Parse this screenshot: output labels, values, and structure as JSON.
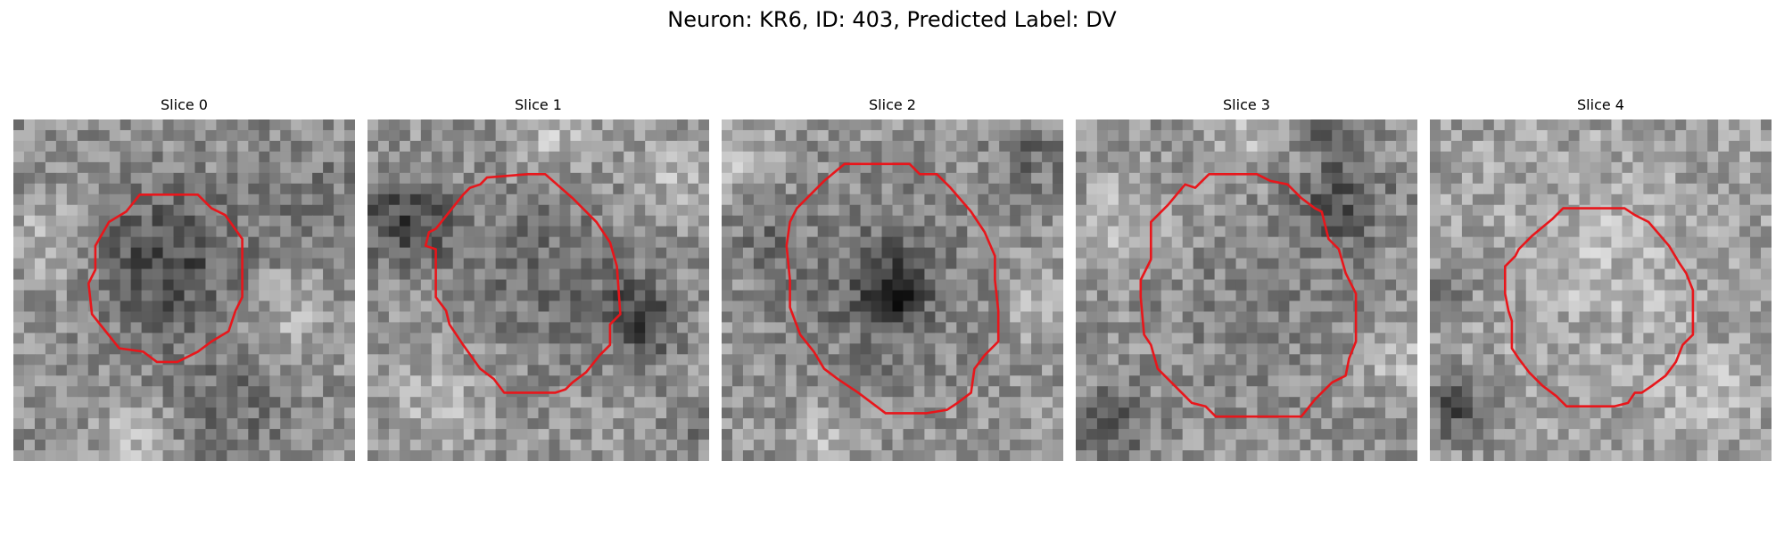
{
  "figure": {
    "title": "Neuron: KR6, ID: 403, Predicted Label: DV"
  },
  "panels": [
    {
      "title": "Slice 0",
      "seed": 11,
      "base": 145,
      "dark": [
        [
          0.45,
          0.42,
          0.22,
          70
        ],
        [
          0.88,
          0.25,
          0.18,
          25
        ],
        [
          0.65,
          0.85,
          0.18,
          35
        ]
      ],
      "bright": [
        [
          0.12,
          0.35,
          0.12,
          45
        ],
        [
          0.8,
          0.55,
          0.12,
          40
        ],
        [
          0.35,
          0.92,
          0.1,
          50
        ]
      ],
      "contour": [
        [
          0.37,
          0.22
        ],
        [
          0.54,
          0.22
        ],
        [
          0.58,
          0.26
        ],
        [
          0.62,
          0.28
        ],
        [
          0.67,
          0.35
        ],
        [
          0.67,
          0.52
        ],
        [
          0.65,
          0.56
        ],
        [
          0.63,
          0.62
        ],
        [
          0.58,
          0.65
        ],
        [
          0.54,
          0.68
        ],
        [
          0.48,
          0.71
        ],
        [
          0.42,
          0.71
        ],
        [
          0.38,
          0.68
        ],
        [
          0.31,
          0.67
        ],
        [
          0.27,
          0.62
        ],
        [
          0.23,
          0.57
        ],
        [
          0.22,
          0.48
        ],
        [
          0.24,
          0.44
        ],
        [
          0.24,
          0.37
        ],
        [
          0.28,
          0.3
        ],
        [
          0.33,
          0.27
        ]
      ]
    },
    {
      "title": "Slice 1",
      "seed": 23,
      "base": 150,
      "dark": [
        [
          0.1,
          0.3,
          0.14,
          80
        ],
        [
          0.8,
          0.58,
          0.12,
          80
        ],
        [
          0.5,
          0.45,
          0.25,
          40
        ],
        [
          0.95,
          0.9,
          0.1,
          30
        ]
      ],
      "bright": [
        [
          0.55,
          0.05,
          0.1,
          40
        ],
        [
          0.2,
          0.85,
          0.12,
          35
        ],
        [
          0.9,
          0.15,
          0.1,
          35
        ]
      ],
      "contour": [
        [
          0.28,
          0.22
        ],
        [
          0.3,
          0.2
        ],
        [
          0.33,
          0.19
        ],
        [
          0.35,
          0.17
        ],
        [
          0.47,
          0.16
        ],
        [
          0.52,
          0.16
        ],
        [
          0.6,
          0.23
        ],
        [
          0.67,
          0.3
        ],
        [
          0.71,
          0.36
        ],
        [
          0.73,
          0.43
        ],
        [
          0.74,
          0.57
        ],
        [
          0.71,
          0.6
        ],
        [
          0.71,
          0.66
        ],
        [
          0.68,
          0.69
        ],
        [
          0.64,
          0.74
        ],
        [
          0.6,
          0.77
        ],
        [
          0.58,
          0.79
        ],
        [
          0.55,
          0.8
        ],
        [
          0.4,
          0.8
        ],
        [
          0.37,
          0.76
        ],
        [
          0.33,
          0.73
        ],
        [
          0.28,
          0.66
        ],
        [
          0.24,
          0.6
        ],
        [
          0.23,
          0.56
        ],
        [
          0.2,
          0.52
        ],
        [
          0.2,
          0.38
        ],
        [
          0.17,
          0.37
        ],
        [
          0.18,
          0.33
        ],
        [
          0.2,
          0.32
        ]
      ]
    },
    {
      "title": "Slice 2",
      "seed": 37,
      "base": 150,
      "dark": [
        [
          0.5,
          0.5,
          0.1,
          90
        ],
        [
          0.45,
          0.5,
          0.32,
          35
        ],
        [
          0.9,
          0.1,
          0.12,
          40
        ],
        [
          0.12,
          0.35,
          0.1,
          30
        ]
      ],
      "bright": [
        [
          0.05,
          0.1,
          0.1,
          45
        ],
        [
          0.95,
          0.55,
          0.1,
          40
        ],
        [
          0.3,
          0.95,
          0.1,
          40
        ]
      ],
      "contour": [
        [
          0.36,
          0.13
        ],
        [
          0.55,
          0.13
        ],
        [
          0.58,
          0.16
        ],
        [
          0.63,
          0.16
        ],
        [
          0.67,
          0.2
        ],
        [
          0.73,
          0.27
        ],
        [
          0.77,
          0.33
        ],
        [
          0.8,
          0.4
        ],
        [
          0.8,
          0.47
        ],
        [
          0.81,
          0.56
        ],
        [
          0.81,
          0.65
        ],
        [
          0.77,
          0.69
        ],
        [
          0.74,
          0.73
        ],
        [
          0.73,
          0.8
        ],
        [
          0.69,
          0.83
        ],
        [
          0.66,
          0.85
        ],
        [
          0.6,
          0.86
        ],
        [
          0.48,
          0.86
        ],
        [
          0.44,
          0.83
        ],
        [
          0.4,
          0.8
        ],
        [
          0.34,
          0.76
        ],
        [
          0.3,
          0.73
        ],
        [
          0.27,
          0.68
        ],
        [
          0.23,
          0.63
        ],
        [
          0.2,
          0.55
        ],
        [
          0.2,
          0.47
        ],
        [
          0.19,
          0.37
        ],
        [
          0.2,
          0.3
        ],
        [
          0.22,
          0.26
        ],
        [
          0.25,
          0.23
        ],
        [
          0.3,
          0.18
        ]
      ]
    },
    {
      "title": "Slice 3",
      "seed": 53,
      "base": 150,
      "dark": [
        [
          0.78,
          0.25,
          0.15,
          60
        ],
        [
          0.1,
          0.9,
          0.12,
          55
        ],
        [
          0.5,
          0.55,
          0.3,
          20
        ],
        [
          0.77,
          0.03,
          0.08,
          60
        ]
      ],
      "bright": [
        [
          0.15,
          0.3,
          0.12,
          40
        ],
        [
          0.95,
          0.7,
          0.1,
          40
        ],
        [
          0.5,
          0.05,
          0.1,
          40
        ]
      ],
      "contour": [
        [
          0.39,
          0.16
        ],
        [
          0.53,
          0.16
        ],
        [
          0.57,
          0.18
        ],
        [
          0.62,
          0.19
        ],
        [
          0.66,
          0.23
        ],
        [
          0.7,
          0.26
        ],
        [
          0.72,
          0.27
        ],
        [
          0.74,
          0.35
        ],
        [
          0.77,
          0.38
        ],
        [
          0.79,
          0.45
        ],
        [
          0.82,
          0.51
        ],
        [
          0.82,
          0.65
        ],
        [
          0.8,
          0.7
        ],
        [
          0.79,
          0.75
        ],
        [
          0.75,
          0.77
        ],
        [
          0.7,
          0.82
        ],
        [
          0.66,
          0.87
        ],
        [
          0.62,
          0.87
        ],
        [
          0.41,
          0.87
        ],
        [
          0.38,
          0.84
        ],
        [
          0.34,
          0.83
        ],
        [
          0.27,
          0.76
        ],
        [
          0.24,
          0.73
        ],
        [
          0.22,
          0.66
        ],
        [
          0.2,
          0.63
        ],
        [
          0.19,
          0.52
        ],
        [
          0.19,
          0.47
        ],
        [
          0.22,
          0.41
        ],
        [
          0.22,
          0.3
        ],
        [
          0.27,
          0.25
        ],
        [
          0.32,
          0.19
        ],
        [
          0.35,
          0.2
        ]
      ]
    },
    {
      "title": "Slice 4",
      "seed": 71,
      "base": 160,
      "dark": [
        [
          0.08,
          0.85,
          0.1,
          75
        ],
        [
          0.05,
          0.5,
          0.08,
          40
        ]
      ],
      "bright": [
        [
          0.5,
          0.4,
          0.25,
          25
        ],
        [
          0.8,
          0.8,
          0.12,
          30
        ]
      ],
      "contour": [
        [
          0.39,
          0.26
        ],
        [
          0.57,
          0.26
        ],
        [
          0.6,
          0.28
        ],
        [
          0.64,
          0.3
        ],
        [
          0.7,
          0.37
        ],
        [
          0.73,
          0.42
        ],
        [
          0.75,
          0.45
        ],
        [
          0.77,
          0.5
        ],
        [
          0.77,
          0.63
        ],
        [
          0.74,
          0.66
        ],
        [
          0.72,
          0.71
        ],
        [
          0.69,
          0.75
        ],
        [
          0.65,
          0.78
        ],
        [
          0.62,
          0.8
        ],
        [
          0.6,
          0.8
        ],
        [
          0.58,
          0.83
        ],
        [
          0.54,
          0.84
        ],
        [
          0.4,
          0.84
        ],
        [
          0.37,
          0.81
        ],
        [
          0.33,
          0.78
        ],
        [
          0.29,
          0.74
        ],
        [
          0.26,
          0.7
        ],
        [
          0.24,
          0.67
        ],
        [
          0.24,
          0.59
        ],
        [
          0.23,
          0.56
        ],
        [
          0.22,
          0.51
        ],
        [
          0.22,
          0.43
        ],
        [
          0.25,
          0.4
        ],
        [
          0.26,
          0.38
        ],
        [
          0.3,
          0.34
        ],
        [
          0.36,
          0.29
        ]
      ]
    }
  ]
}
